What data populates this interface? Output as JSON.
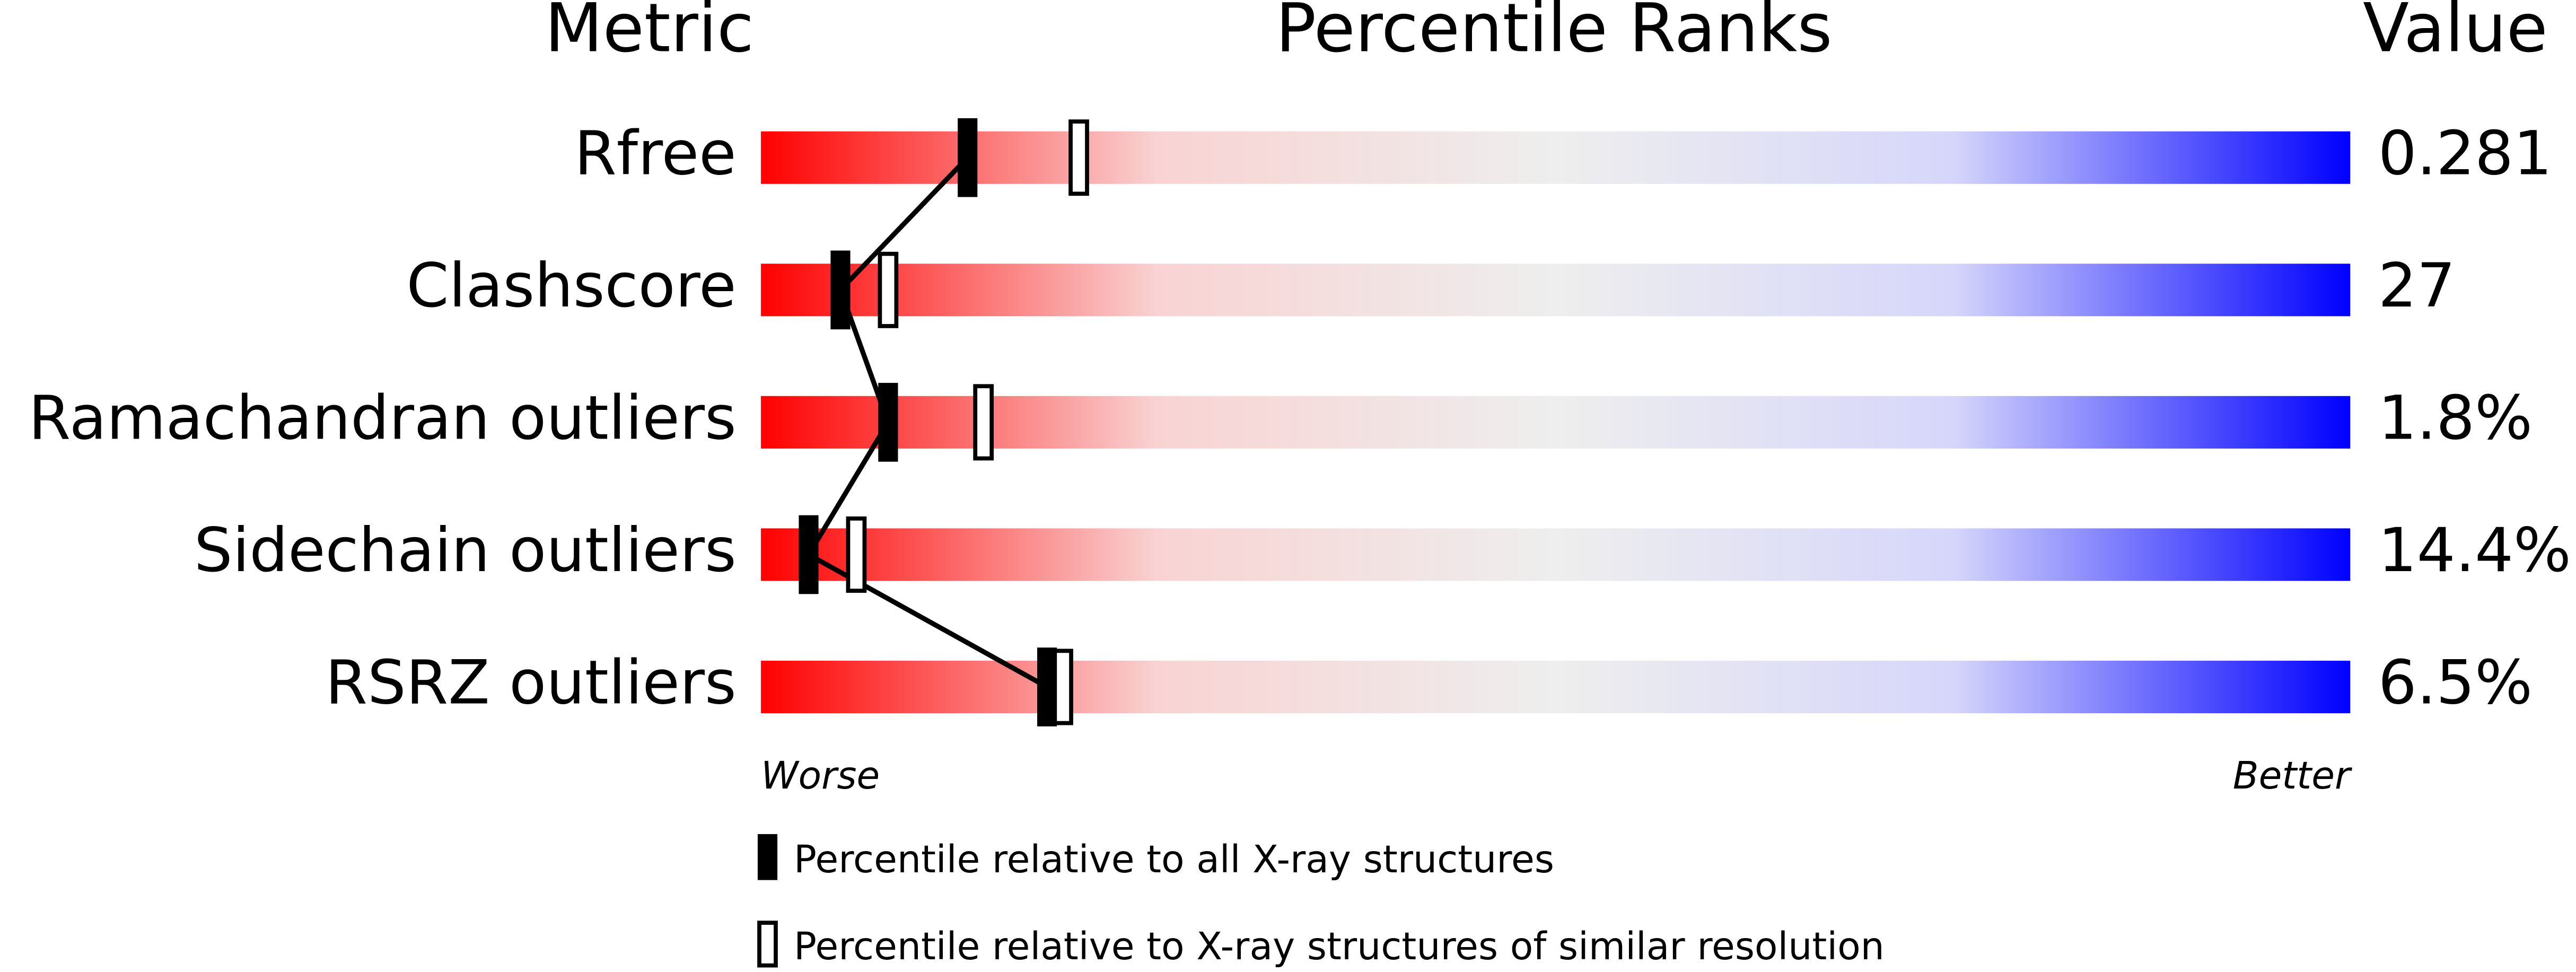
{
  "chart_data": {
    "type": "percentile",
    "headers": {
      "metric": "Metric",
      "ranks": "Percentile Ranks",
      "value": "Value"
    },
    "categories": [
      "Rfree",
      "Clashscore",
      "Ramachandran outliers",
      "Sidechain outliers",
      "RSRZ outliers"
    ],
    "metric_values": [
      "0.281",
      "27",
      "1.8%",
      "14.4%",
      "6.5%"
    ],
    "xlim": [
      0,
      100
    ],
    "low_label": "Worse",
    "high_label": "Better",
    "gradient": [
      "#ff0000",
      "#f9d3d3",
      "#eeeeee",
      "#d6d6fb",
      "#0000ff"
    ],
    "series": [
      {
        "name": "Percentile relative to all X-ray structures",
        "style": "filled",
        "color": "#000000",
        "values": [
          13,
          5,
          8,
          3,
          18
        ]
      },
      {
        "name": "Percentile relative to X-ray structures of similar resolution",
        "style": "outline",
        "color": "#000000",
        "values": [
          20,
          8,
          14,
          6,
          19
        ]
      }
    ]
  }
}
